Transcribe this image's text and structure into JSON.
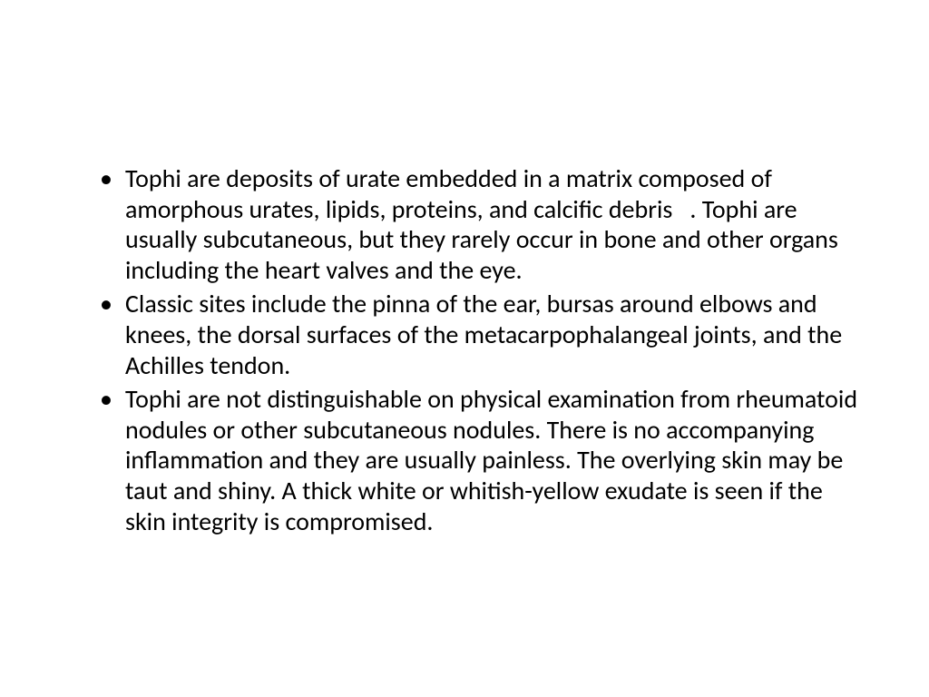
{
  "slide": {
    "bullets": [
      {
        "text": "Tophi are deposits of urate embedded in a matrix composed of amorphous urates, lipids, proteins, and calcific debris   . Tophi are usually subcutaneous, but they rarely occur in bone and other organs including the heart valves and the eye."
      },
      {
        "text": " Classic sites include the pinna of the ear, bursas around elbows and knees, the dorsal surfaces of the metacarpophalangeal joints, and the Achilles tendon."
      },
      {
        "text": " Tophi are not distinguishable on physical examination from rheumatoid nodules or other subcutaneous nodules. There is no accompanying inflammation and they are usually painless. The overlying skin may be taut and shiny. A thick white or whitish-yellow exudate is seen if the skin integrity is compromised."
      }
    ],
    "styling": {
      "background_color": "#ffffff",
      "text_color": "#000000",
      "font_family": "Calibri",
      "font_size_pt": 28,
      "line_height": 1.2,
      "bullet_char": "•"
    }
  }
}
